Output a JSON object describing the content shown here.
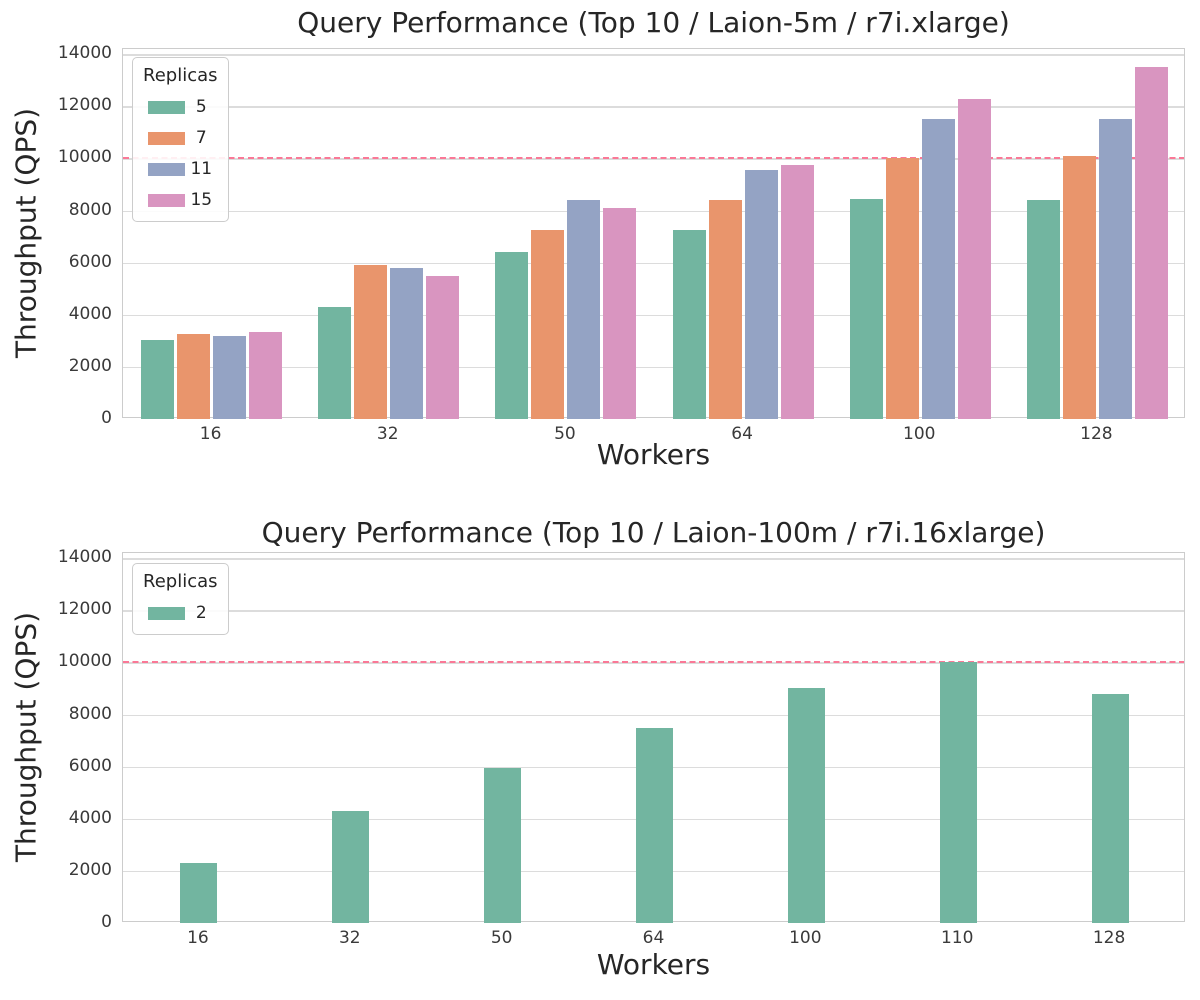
{
  "figure": {
    "background": "#ffffff",
    "grid_color": "#dcdcdc",
    "spine_color": "#cccccc",
    "text_color": "#262626",
    "tick_color": "#3a3a3a"
  },
  "chart_data": [
    {
      "type": "bar",
      "title": "Query Performance (Top 10 / Laion-5m / r7i.xlarge)",
      "xlabel": "Workers",
      "ylabel": "Throughput (QPS)",
      "categories": [
        "16",
        "32",
        "50",
        "64",
        "100",
        "128"
      ],
      "series": [
        {
          "name": "5",
          "color": "#72b5a0",
          "values": [
            3050,
            4300,
            6400,
            7250,
            8450,
            8400
          ]
        },
        {
          "name": "7",
          "color": "#e9956c",
          "values": [
            3250,
            5900,
            7250,
            8400,
            10000,
            10100
          ]
        },
        {
          "name": "11",
          "color": "#94a3c4",
          "values": [
            3200,
            5800,
            8400,
            9550,
            11500,
            11500
          ]
        },
        {
          "name": "15",
          "color": "#d995c0",
          "values": [
            3350,
            5500,
            8100,
            9750,
            12300,
            13500
          ]
        }
      ],
      "legend": {
        "title": "Replicas",
        "entries": [
          "5",
          "7",
          "11",
          "15"
        ],
        "position": "upper left"
      },
      "yticks": [
        0,
        2000,
        4000,
        6000,
        8000,
        10000,
        12000,
        14000
      ],
      "ylim": [
        0,
        14200
      ],
      "grid": true,
      "threshold_line": {
        "y": 10000,
        "color": "#fa7896",
        "style": "dashed"
      }
    },
    {
      "type": "bar",
      "title": "Query Performance (Top 10 / Laion-100m / r7i.16xlarge)",
      "xlabel": "Workers",
      "ylabel": "Throughput (QPS)",
      "categories": [
        "16",
        "32",
        "50",
        "64",
        "100",
        "110",
        "128"
      ],
      "series": [
        {
          "name": "2",
          "color": "#72b5a0",
          "values": [
            2300,
            4300,
            5950,
            7500,
            9000,
            10000,
            8800
          ]
        }
      ],
      "legend": {
        "title": "Replicas",
        "entries": [
          "2"
        ],
        "position": "upper left"
      },
      "yticks": [
        0,
        2000,
        4000,
        6000,
        8000,
        10000,
        12000,
        14000
      ],
      "ylim": [
        0,
        14200
      ],
      "grid": true,
      "threshold_line": {
        "y": 10000,
        "color": "#fa7896",
        "style": "dashed"
      }
    }
  ]
}
